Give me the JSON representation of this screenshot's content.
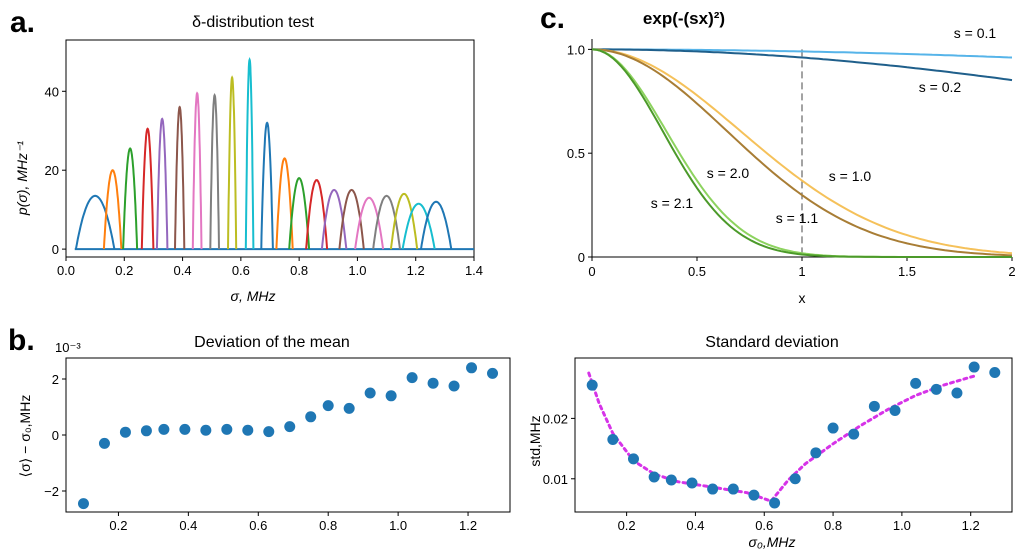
{
  "panel_labels": {
    "a": "a.",
    "b": "b.",
    "c": "c."
  },
  "chart_data": [
    {
      "id": "a",
      "type": "line",
      "title": "δ-distribution test",
      "xlabel": "σ, MHz",
      "ylabel": "p(σ), MHz⁻¹",
      "xlim": [
        0,
        1.4
      ],
      "ylim": [
        -2,
        53
      ],
      "xticks": [
        "0.0",
        "0.2",
        "0.4",
        "0.6",
        "0.8",
        "1.0",
        "1.2",
        "1.4"
      ],
      "yticks": [
        "0",
        "20",
        "40"
      ],
      "grid": false,
      "peaks": [
        {
          "center": 0.1,
          "height": 13.5,
          "halfwidth": 0.066,
          "color": "#1f77b4"
        },
        {
          "center": 0.16,
          "height": 20.0,
          "halfwidth": 0.03,
          "color": "#ff7f0e"
        },
        {
          "center": 0.22,
          "height": 25.5,
          "halfwidth": 0.024,
          "color": "#2ca02c"
        },
        {
          "center": 0.28,
          "height": 30.5,
          "halfwidth": 0.02,
          "color": "#d62728"
        },
        {
          "center": 0.33,
          "height": 33.0,
          "halfwidth": 0.018,
          "color": "#9467bd"
        },
        {
          "center": 0.39,
          "height": 36.0,
          "halfwidth": 0.016,
          "color": "#8c564b"
        },
        {
          "center": 0.45,
          "height": 39.5,
          "halfwidth": 0.015,
          "color": "#e377c2"
        },
        {
          "center": 0.51,
          "height": 39.0,
          "halfwidth": 0.015,
          "color": "#7f7f7f"
        },
        {
          "center": 0.57,
          "height": 43.5,
          "halfwidth": 0.014,
          "color": "#bcbd22"
        },
        {
          "center": 0.63,
          "height": 48.0,
          "halfwidth": 0.013,
          "color": "#17becf"
        },
        {
          "center": 0.69,
          "height": 32.0,
          "halfwidth": 0.02,
          "color": "#1f77b4"
        },
        {
          "center": 0.75,
          "height": 23.0,
          "halfwidth": 0.028,
          "color": "#ff7f0e"
        },
        {
          "center": 0.8,
          "height": 18.0,
          "halfwidth": 0.034,
          "color": "#2ca02c"
        },
        {
          "center": 0.86,
          "height": 17.5,
          "halfwidth": 0.036,
          "color": "#d62728"
        },
        {
          "center": 0.92,
          "height": 15.0,
          "halfwidth": 0.042,
          "color": "#9467bd"
        },
        {
          "center": 0.98,
          "height": 15.0,
          "halfwidth": 0.042,
          "color": "#8c564b"
        },
        {
          "center": 1.04,
          "height": 13.0,
          "halfwidth": 0.048,
          "color": "#e377c2"
        },
        {
          "center": 1.1,
          "height": 13.5,
          "halfwidth": 0.046,
          "color": "#7f7f7f"
        },
        {
          "center": 1.16,
          "height": 14.0,
          "halfwidth": 0.045,
          "color": "#bcbd22"
        },
        {
          "center": 1.21,
          "height": 11.5,
          "halfwidth": 0.055,
          "color": "#17becf"
        },
        {
          "center": 1.27,
          "height": 12.0,
          "halfwidth": 0.052,
          "color": "#1f77b4"
        }
      ]
    },
    {
      "id": "b",
      "type": "scatter",
      "title": "Deviation of the mean",
      "xlabel": "",
      "ylabel": "⟨σ⟩ − σ₀,MHz",
      "scale_label": "10⁻³",
      "xlim": [
        0.05,
        1.32
      ],
      "ylim": [
        -2.75,
        2.75
      ],
      "xticks": [
        "0.2",
        "0.4",
        "0.6",
        "0.8",
        "1.0",
        "1.2"
      ],
      "yticks": [
        "−2",
        "0",
        "2"
      ],
      "color": "#1f77b4",
      "x": [
        0.1,
        0.16,
        0.22,
        0.28,
        0.33,
        0.39,
        0.45,
        0.51,
        0.57,
        0.63,
        0.69,
        0.75,
        0.8,
        0.86,
        0.92,
        0.98,
        1.04,
        1.1,
        1.16,
        1.21,
        1.27
      ],
      "y": [
        -2.45,
        -0.3,
        0.1,
        0.15,
        0.2,
        0.2,
        0.17,
        0.2,
        0.17,
        0.12,
        0.3,
        0.65,
        1.05,
        0.95,
        1.5,
        1.4,
        2.05,
        1.85,
        1.75,
        2.4,
        2.2
      ]
    },
    {
      "id": "c",
      "type": "line",
      "title": "exp(-(sx)²)",
      "xlabel": "x",
      "ylabel": "",
      "xlim": [
        0,
        2
      ],
      "ylim": [
        0,
        1.05
      ],
      "xticks": [
        "0",
        "0.5",
        "1",
        "1.5",
        "2"
      ],
      "yticks": [
        "0",
        "0.5",
        "1.0"
      ],
      "vline_x": 1,
      "series": [
        {
          "name": "s = 0.1",
          "s": 0.1,
          "color": "#56b4e9"
        },
        {
          "name": "s = 0.2",
          "s": 0.2,
          "color": "#1f5f8b"
        },
        {
          "name": "s = 1.0",
          "s": 1.0,
          "color": "#f5c15a"
        },
        {
          "name": "s = 1.1",
          "s": 1.1,
          "color": "#a87d35"
        },
        {
          "name": "s = 2.0",
          "s": 2.0,
          "color": "#8dd35f"
        },
        {
          "name": "s = 2.1",
          "s": 2.1,
          "color": "#4c9a2a"
        }
      ]
    },
    {
      "id": "d",
      "type": "scatter",
      "title": "Standard deviation",
      "xlabel": "σ₀,MHz",
      "ylabel": "std,MHz",
      "xlim": [
        0.05,
        1.32
      ],
      "ylim": [
        0.0045,
        0.03
      ],
      "xticks": [
        "0.2",
        "0.4",
        "0.6",
        "0.8",
        "1.0",
        "1.2"
      ],
      "yticks": [
        "0.01",
        "0.02"
      ],
      "color": "#1f77b4",
      "fit_color": "#d633e8",
      "x": [
        0.1,
        0.16,
        0.22,
        0.28,
        0.33,
        0.39,
        0.45,
        0.51,
        0.57,
        0.63,
        0.69,
        0.75,
        0.8,
        0.86,
        0.92,
        0.98,
        1.04,
        1.1,
        1.16,
        1.21,
        1.27
      ],
      "y": [
        0.0255,
        0.0165,
        0.0133,
        0.0103,
        0.0098,
        0.0093,
        0.0083,
        0.0083,
        0.0073,
        0.006,
        0.01,
        0.0143,
        0.0184,
        0.0174,
        0.022,
        0.0213,
        0.0258,
        0.0248,
        0.0242,
        0.0285,
        0.0276
      ],
      "fit_x": [
        0.09,
        0.12,
        0.16,
        0.22,
        0.28,
        0.35,
        0.45,
        0.55,
        0.62,
        0.67,
        0.72,
        0.8,
        0.88,
        0.96,
        1.04,
        1.12,
        1.21
      ],
      "fit_y": [
        0.0275,
        0.0225,
        0.0175,
        0.013,
        0.0108,
        0.0095,
        0.0086,
        0.0077,
        0.0063,
        0.0098,
        0.0125,
        0.0158,
        0.0188,
        0.0215,
        0.0238,
        0.0255,
        0.027
      ]
    }
  ]
}
